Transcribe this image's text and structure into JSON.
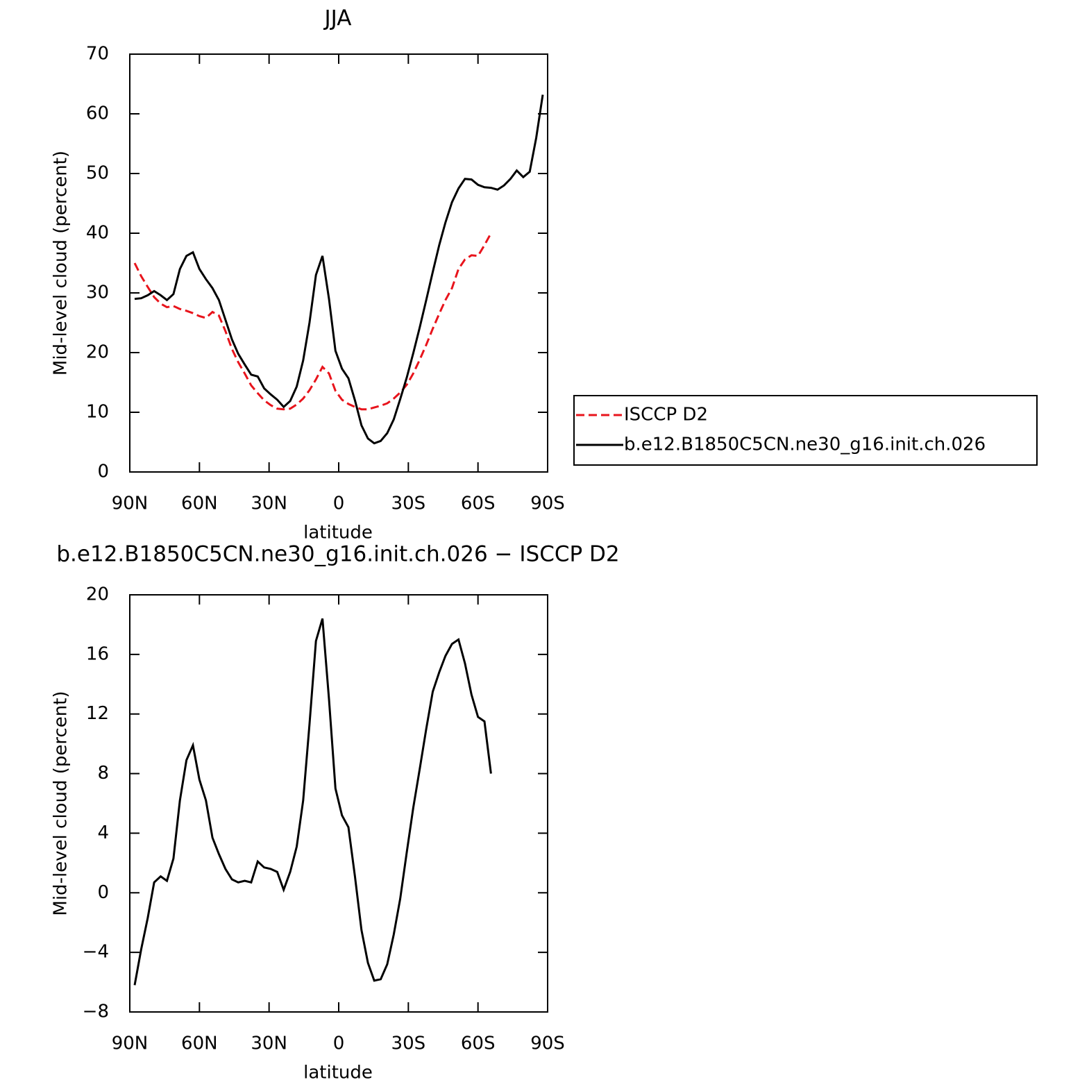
{
  "chart_data": [
    {
      "type": "line",
      "title": "JJA",
      "xlabel": "latitude",
      "ylabel": "Mid-level cloud (percent)",
      "x": [
        87.9,
        85.1,
        82.3,
        79.5,
        76.7,
        74.0,
        71.2,
        68.4,
        65.6,
        62.8,
        60.0,
        57.2,
        54.4,
        51.6,
        48.8,
        46.0,
        43.3,
        40.5,
        37.7,
        34.9,
        32.1,
        29.3,
        26.5,
        23.7,
        20.9,
        18.1,
        15.3,
        12.6,
        9.8,
        7.0,
        4.2,
        1.4,
        -1.4,
        -4.2,
        -7.0,
        -9.8,
        -12.6,
        -15.3,
        -18.1,
        -20.9,
        -23.7,
        -26.5,
        -29.3,
        -32.1,
        -34.9,
        -37.7,
        -40.5,
        -43.3,
        -46.0,
        -48.8,
        -51.6,
        -54.4,
        -57.2,
        -60.0,
        -62.8,
        -65.6,
        -68.4,
        -71.2,
        -74.0,
        -76.7,
        -79.5,
        -82.3,
        -85.1,
        -87.9
      ],
      "xlim": [
        90,
        -90
      ],
      "xticks": [
        {
          "value": 90,
          "label": "90N"
        },
        {
          "value": 60,
          "label": "60N"
        },
        {
          "value": 30,
          "label": "30N"
        },
        0,
        {
          "value": -30,
          "label": "30S"
        },
        {
          "value": -60,
          "label": "60S"
        },
        {
          "value": -90,
          "label": "90S"
        }
      ],
      "ylim": [
        0,
        70
      ],
      "yticks": [
        0,
        10,
        20,
        30,
        40,
        50,
        60,
        70
      ],
      "series": [
        {
          "name": "ISCCP D2",
          "color": "#e8141c",
          "dash": true,
          "values": [
            35,
            32.8,
            31,
            29.3,
            28.2,
            27.6,
            27.8,
            27.3,
            27,
            26.6,
            26.1,
            25.8,
            26.8,
            26.2,
            23.6,
            20.6,
            18.4,
            16.5,
            14.5,
            13.2,
            12,
            11.2,
            10.6,
            10.5,
            10.6,
            11.3,
            12.3,
            13.7,
            15.5,
            17.6,
            16.5,
            13.6,
            12.1,
            11.4,
            10.9,
            10.5,
            10.5,
            10.8,
            11.1,
            11.5,
            12.3,
            13.3,
            14.6,
            16.5,
            18.8,
            21.3,
            24,
            26.5,
            28.8,
            30.8,
            34,
            35.6,
            36.3,
            36.2,
            38,
            40,
            null,
            null,
            null,
            null,
            null,
            null,
            null,
            null
          ]
        },
        {
          "name": "b.e12.B1850C5CN.ne30_g16.init.ch.026",
          "color": "#000000",
          "dash": false,
          "values": [
            29,
            29.1,
            29.6,
            30.3,
            29.6,
            28.8,
            29.8,
            34,
            36.2,
            36.8,
            34,
            32.3,
            30.8,
            28.8,
            25.5,
            22.2,
            19.8,
            18,
            16.3,
            16,
            14,
            13,
            12.1,
            10.9,
            11.9,
            14.3,
            18.7,
            25,
            33,
            36.2,
            29,
            20.3,
            17.3,
            15.7,
            12,
            7.8,
            5.6,
            4.8,
            5.2,
            6.5,
            8.8,
            12.2,
            15.8,
            19.9,
            24.2,
            28.8,
            33.5,
            38,
            41.8,
            45.2,
            47.5,
            49.1,
            49,
            48.1,
            47.7,
            47.6,
            47.3,
            48,
            49.1,
            50.5,
            49.4,
            50.3,
            56,
            63.2
          ]
        }
      ]
    },
    {
      "type": "line",
      "title": "b.e12.B1850C5CN.ne30_g16.init.ch.026 − ISCCP D2",
      "xlabel": "latitude",
      "ylabel": "Mid-level cloud (percent)",
      "x": [
        87.9,
        85.1,
        82.3,
        79.5,
        76.7,
        74.0,
        71.2,
        68.4,
        65.6,
        62.8,
        60.0,
        57.2,
        54.4,
        51.6,
        48.8,
        46.0,
        43.3,
        40.5,
        37.7,
        34.9,
        32.1,
        29.3,
        26.5,
        23.7,
        20.9,
        18.1,
        15.3,
        12.6,
        9.8,
        7.0,
        4.2,
        1.4,
        -1.4,
        -4.2,
        -7.0,
        -9.8,
        -12.6,
        -15.3,
        -18.1,
        -20.9,
        -23.7,
        -26.5,
        -29.3,
        -32.1,
        -34.9,
        -37.7,
        -40.5,
        -43.3,
        -46.0,
        -48.8,
        -51.6,
        -54.4,
        -57.2,
        -60.0,
        -62.8,
        -65.6,
        -68.4,
        -71.2,
        -74.0,
        -76.7,
        -79.5,
        -82.3,
        -85.1,
        -87.9
      ],
      "xlim": [
        90,
        -90
      ],
      "xticks": [
        {
          "value": 90,
          "label": "90N"
        },
        {
          "value": 60,
          "label": "60N"
        },
        {
          "value": 30,
          "label": "30N"
        },
        0,
        {
          "value": -30,
          "label": "30S"
        },
        {
          "value": -60,
          "label": "60S"
        },
        {
          "value": -90,
          "label": "90S"
        }
      ],
      "ylim": [
        -8,
        20
      ],
      "yticks": [
        {
          "value": -8,
          "label": "−8"
        },
        {
          "value": -4,
          "label": "−4"
        },
        0,
        4,
        8,
        12,
        16,
        20
      ],
      "series": [
        {
          "color": "#000000",
          "dash": false,
          "values": [
            -6.2,
            -3.8,
            -1.7,
            0.7,
            1.1,
            0.8,
            2.3,
            6.2,
            8.9,
            9.9,
            7.6,
            6.2,
            3.7,
            2.6,
            1.6,
            0.9,
            0.7,
            0.8,
            0.7,
            2.1,
            1.7,
            1.6,
            1.4,
            0.2,
            1.4,
            3.1,
            6.2,
            11.3,
            16.9,
            18.4,
            13,
            7,
            5.2,
            4.4,
            1.1,
            -2.5,
            -4.7,
            -5.9,
            -5.8,
            -4.8,
            -2.8,
            -0.4,
            2.7,
            5.7,
            8.3,
            11,
            13.5,
            14.8,
            15.9,
            16.7,
            17,
            15.4,
            13.3,
            11.8,
            11.5,
            8,
            null,
            null,
            null,
            null,
            null,
            null,
            null,
            null
          ]
        }
      ]
    }
  ]
}
